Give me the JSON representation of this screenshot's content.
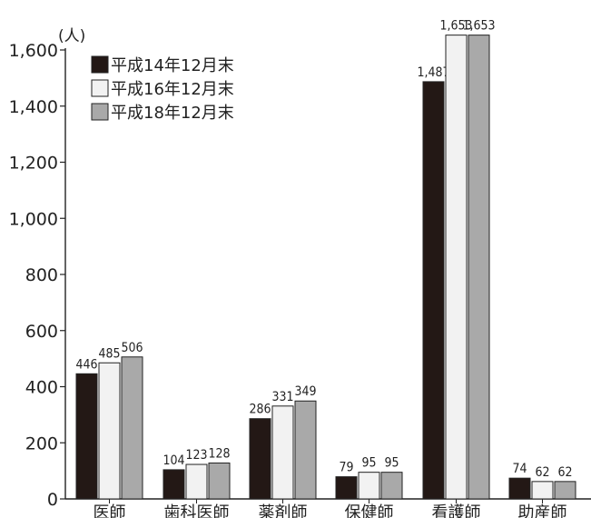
{
  "chart_data": {
    "type": "bar",
    "unit_label": "(人)",
    "categories": [
      "医師",
      "歯科医師",
      "薬剤師",
      "保健師",
      "看護師",
      "助産師"
    ],
    "series": [
      {
        "name": "平成14年12月末",
        "color": "#231815",
        "values": [
          446,
          104,
          286,
          79,
          1487,
          74
        ]
      },
      {
        "name": "平成16年12月末",
        "color": "#f2f2f2",
        "values": [
          485,
          123,
          331,
          95,
          1653,
          62
        ]
      },
      {
        "name": "平成18年12月末",
        "color": "#a9a9a9",
        "values": [
          506,
          128,
          349,
          95,
          1653,
          62
        ]
      }
    ],
    "data_labels": [
      [
        "446",
        "104",
        "286",
        "79",
        "1,487",
        "74"
      ],
      [
        "485",
        "123",
        "331",
        "95",
        "1,653",
        "62"
      ],
      [
        "506",
        "128",
        "349",
        "95",
        "1,653",
        "62"
      ]
    ],
    "y_ticks": [
      0,
      200,
      400,
      600,
      800,
      1000,
      1200,
      1400,
      1600
    ],
    "y_tick_labels": [
      "0",
      "200",
      "400",
      "600",
      "800",
      "1,000",
      "1,200",
      "1,400",
      "1,600"
    ],
    "ylim": [
      0,
      1600
    ],
    "grid": false,
    "legend_position": "top-left"
  }
}
